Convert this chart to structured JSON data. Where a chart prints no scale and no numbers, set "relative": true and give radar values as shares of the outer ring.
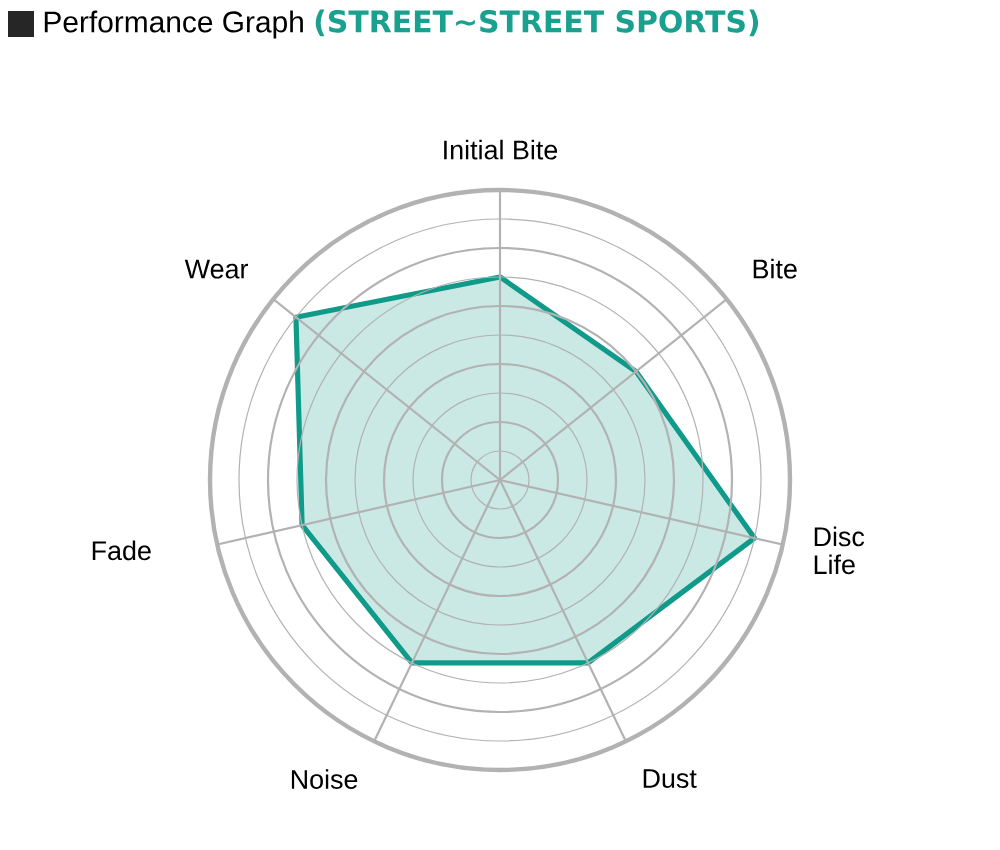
{
  "chart_data": {
    "type": "radar",
    "title": "Performance Graph",
    "subtitle": "(STREET∼STREET SPORTS)",
    "categories": [
      "Initial Bite",
      "Bite",
      "Disc Life",
      "Dust",
      "Noise",
      "Fade",
      "Wear"
    ],
    "relative": true,
    "series": [
      {
        "color": "#0f9a8a",
        "values": [
          0.7,
          0.6,
          0.9,
          0.7,
          0.7,
          0.7,
          0.9
        ]
      }
    ]
  }
}
